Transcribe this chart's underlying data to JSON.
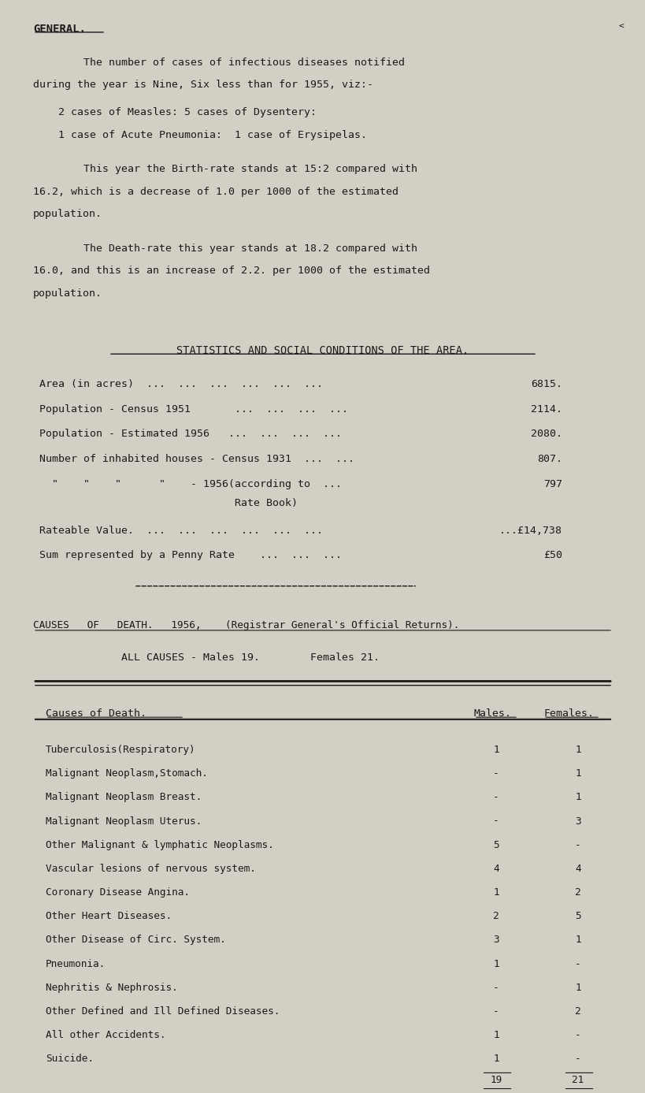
{
  "bg_color": "#d4cfc4",
  "text_color": "#1a1a1a",
  "font_family": "DejaVu Sans Mono",
  "stats_rows": [
    [
      "Area (in acres)  ...  ...  ...  ...  ...  ...",
      "6815."
    ],
    [
      "Population - Census 1951       ...  ...  ...  ...",
      "2114."
    ],
    [
      "Population - Estimated 1956   ...  ...  ...  ...",
      "2080."
    ],
    [
      "Number of inhabited houses - Census 1931  ...  ...",
      "807."
    ],
    [
      "  \"    \"    \"      \"    - 1956(according to  ...",
      "797"
    ],
    [
      "                               Rate Book)",
      ""
    ],
    [
      "Rateable Value.  ...  ...  ...  ...  ...  ...",
      "...£14,738"
    ],
    [
      "Sum represented by a Penny Rate    ...  ...  ...",
      "£50"
    ]
  ],
  "table_rows": [
    [
      "Tuberculosis(Respiratory)",
      "1",
      "1"
    ],
    [
      "Malignant Neoplasm,Stomach.",
      "-",
      "1"
    ],
    [
      "Malignant Neoplasm Breast.",
      "-",
      "1"
    ],
    [
      "Malignant Neoplasm Uterus.",
      "-",
      "3"
    ],
    [
      "Other Malignant & lymphatic Neoplasms.",
      "5",
      "-"
    ],
    [
      "Vascular lesions of nervous system.",
      "4",
      "4"
    ],
    [
      "Coronary Disease Angina.",
      "1",
      "2"
    ],
    [
      "Other Heart Diseases.",
      "2",
      "5"
    ],
    [
      "Other Disease of Circ. System.",
      "3",
      "1"
    ],
    [
      "Pneumonia.",
      "1",
      "-"
    ],
    [
      "Nephritis & Nephrosis.",
      "-",
      "1"
    ],
    [
      "Other Defined and Ill Defined Diseases.",
      "-",
      "2"
    ],
    [
      "All other Accidents.",
      "1",
      "-"
    ],
    [
      "Suicide.",
      "1",
      "-"
    ]
  ],
  "totals": [
    "19",
    "21"
  ]
}
